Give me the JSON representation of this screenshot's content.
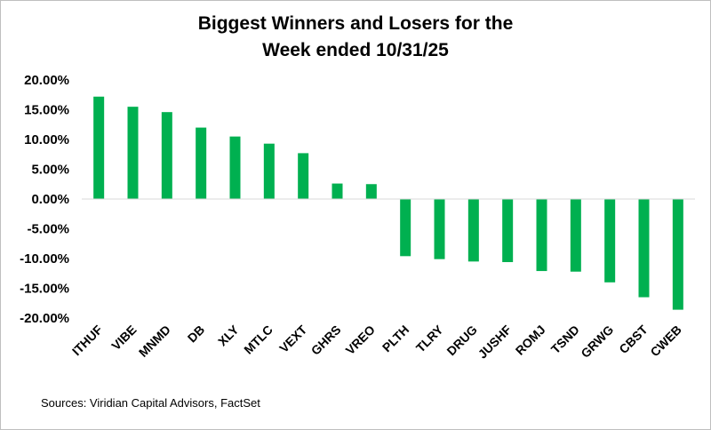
{
  "chart_data": {
    "type": "bar",
    "title_lines": [
      "Biggest Winners and Losers for the",
      "Week ended 10/31/25"
    ],
    "categories": [
      "ITHUF",
      "VIBE",
      "MNMD",
      "DB",
      "XLY",
      "MTLC",
      "VEXT",
      "GHRS",
      "VREO",
      "PLTH",
      "TLRY",
      "DRUG",
      "JUSHF",
      "ROMJ",
      "TSND",
      "GRWG",
      "CBST",
      "CWEB"
    ],
    "values": [
      17.2,
      15.5,
      14.6,
      12.0,
      10.5,
      9.3,
      7.7,
      2.6,
      2.5,
      -9.6,
      -10.1,
      -10.5,
      -10.6,
      -12.1,
      -12.2,
      -14.0,
      -16.5,
      -18.6
    ],
    "y_ticks": [
      "20.00%",
      "15.00%",
      "10.00%",
      "5.00%",
      "0.00%",
      "-5.00%",
      "-10.00%",
      "-15.00%",
      "-20.00%"
    ],
    "ylim": [
      -20,
      20
    ],
    "xlabel": "",
    "ylabel": "",
    "grid": false,
    "legend": false,
    "bar_color": "#00b050",
    "axis_color": "#d9d9d9"
  },
  "source": "Sources: Viridian Capital Advisors, FactSet"
}
